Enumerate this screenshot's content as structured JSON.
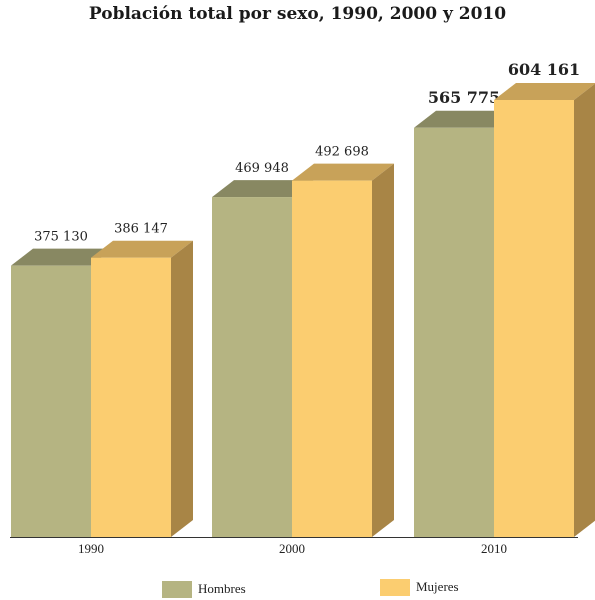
{
  "chart_data": {
    "type": "bar",
    "title": "Población total por sexo, 1990, 2000 y 2010",
    "xlabel": "",
    "ylabel": "",
    "categories": [
      "1990",
      "2000",
      "2010"
    ],
    "series": [
      {
        "name": "Hombres",
        "values": [
          375130,
          469948,
          565775
        ],
        "labels": [
          "375 130",
          "469 948",
          "565 775"
        ]
      },
      {
        "name": "Mujeres",
        "values": [
          386147,
          492698,
          604161
        ],
        "labels": [
          "386 147",
          "492 698",
          "604 161"
        ]
      }
    ],
    "ylim": [
      0,
      604161
    ],
    "grid": false,
    "legend": "bottom",
    "three_d": true,
    "colors": {
      "Hombres": {
        "front": "#b5b482",
        "top": "#888862",
        "side": "#7d7c56"
      },
      "Mujeres": {
        "front": "#fbcd70",
        "top": "#c8a259",
        "side": "#a88546"
      }
    }
  }
}
